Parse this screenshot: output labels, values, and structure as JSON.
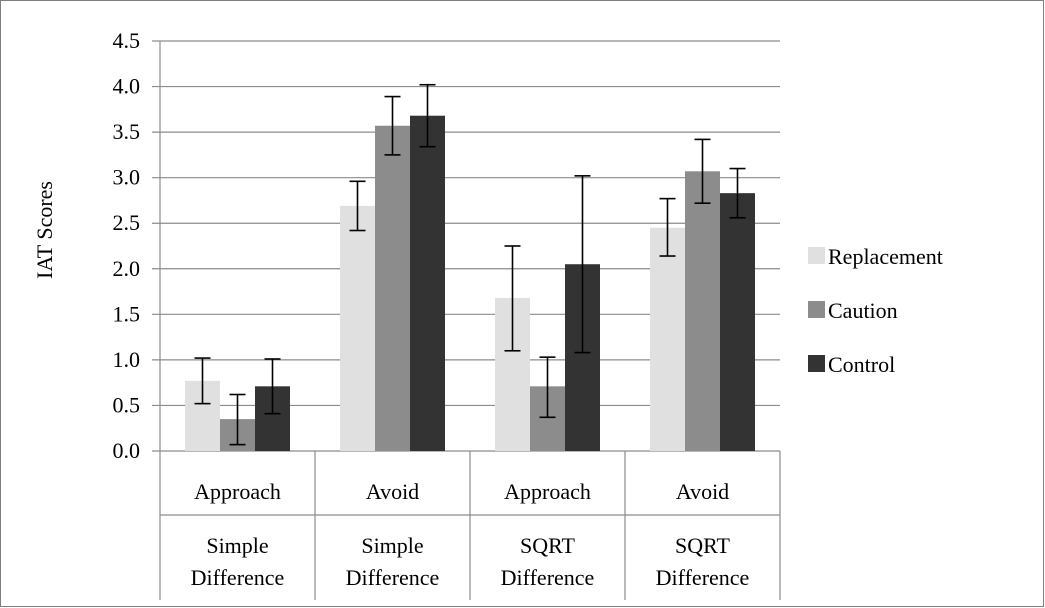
{
  "chart_data": {
    "type": "bar",
    "title": "",
    "xlabel": "",
    "ylabel": "IAT Scores",
    "ylim": [
      0,
      4.5
    ],
    "yticks": [
      "0.0",
      "0.5",
      "1.0",
      "1.5",
      "2.0",
      "2.5",
      "3.0",
      "3.5",
      "4.0",
      "4.5"
    ],
    "ytick_values": [
      0,
      0.5,
      1,
      1.5,
      2,
      2.5,
      3,
      3.5,
      4,
      4.5
    ],
    "grid": true,
    "legend_position": "right",
    "categories": [
      "Approach",
      "Avoid",
      "Approach",
      "Avoid"
    ],
    "category_groups": [
      [
        "Simple",
        "Difference"
      ],
      [
        "Simple",
        "Difference"
      ],
      [
        "SQRT",
        "Difference"
      ],
      [
        "SQRT",
        "Difference"
      ]
    ],
    "series": [
      {
        "name": "Replacement",
        "color": "#e0e0e0",
        "values": [
          0.77,
          2.69,
          1.68,
          2.45
        ],
        "error_low": [
          0.52,
          2.42,
          1.1,
          2.14
        ],
        "error_high": [
          1.02,
          2.96,
          2.25,
          2.77
        ]
      },
      {
        "name": "Caution",
        "color": "#8c8c8c",
        "values": [
          0.35,
          3.57,
          0.71,
          3.07
        ],
        "error_low": [
          0.07,
          3.25,
          0.37,
          2.72
        ],
        "error_high": [
          0.62,
          3.89,
          1.03,
          3.42
        ]
      },
      {
        "name": "Control",
        "color": "#333333",
        "values": [
          0.71,
          3.68,
          2.05,
          2.83
        ],
        "error_low": [
          0.41,
          3.34,
          1.08,
          2.56
        ],
        "error_high": [
          1.01,
          4.02,
          3.02,
          3.1
        ]
      }
    ]
  }
}
